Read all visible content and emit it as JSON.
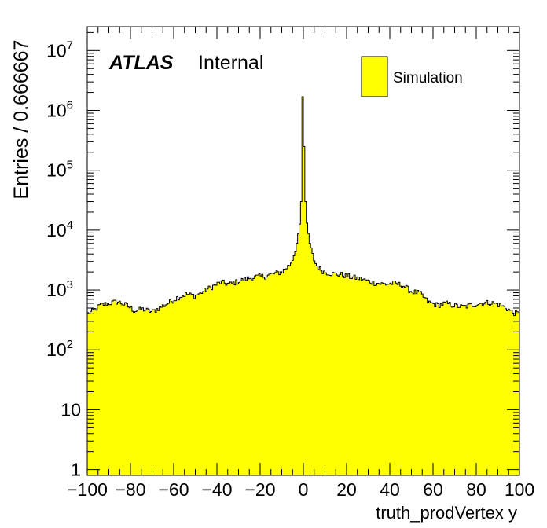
{
  "chart_data": {
    "type": "bar",
    "histtype": "step-filled",
    "xlabel": "truth_prodVertex y",
    "ylabel": "Entries / 0.666667",
    "xlim": [
      -100,
      100
    ],
    "ylim": [
      0.8,
      25000000
    ],
    "yscale": "log",
    "grid": false,
    "bin_width": 0.666667,
    "fill_color": "#ffff00",
    "line_color": "#000000",
    "legend": {
      "position": "top-right",
      "entries": [
        {
          "label": "Simulation",
          "color": "#ffff00"
        }
      ]
    },
    "annotation": {
      "bold": "ATLAS",
      "normal": "Internal"
    },
    "x_ticks": [
      {
        "value": -100,
        "label": "−100"
      },
      {
        "value": -80,
        "label": "−80"
      },
      {
        "value": -60,
        "label": "−60"
      },
      {
        "value": -40,
        "label": "−40"
      },
      {
        "value": -20,
        "label": "−20"
      },
      {
        "value": 0,
        "label": "0"
      },
      {
        "value": 20,
        "label": "20"
      },
      {
        "value": 40,
        "label": "40"
      },
      {
        "value": 60,
        "label": "60"
      },
      {
        "value": 80,
        "label": "80"
      },
      {
        "value": 100,
        "label": "100"
      }
    ],
    "y_ticks": [
      {
        "value": 1,
        "base": "1",
        "exp": ""
      },
      {
        "value": 10,
        "base": "10",
        "exp": ""
      },
      {
        "value": 100,
        "base": "10",
        "exp": "2"
      },
      {
        "value": 1000,
        "base": "10",
        "exp": "3"
      },
      {
        "value": 10000,
        "base": "10",
        "exp": "4"
      },
      {
        "value": 100000,
        "base": "10",
        "exp": "5"
      },
      {
        "value": 1000000,
        "base": "10",
        "exp": "6"
      },
      {
        "value": 10000000,
        "base": "10",
        "exp": "7"
      }
    ],
    "envelope": [
      [
        -100,
        400
      ],
      [
        -97,
        450
      ],
      [
        -94,
        560
      ],
      [
        -90,
        600
      ],
      [
        -86,
        640
      ],
      [
        -82,
        560
      ],
      [
        -78,
        450
      ],
      [
        -74,
        480
      ],
      [
        -70,
        430
      ],
      [
        -66,
        520
      ],
      [
        -62,
        620
      ],
      [
        -58,
        760
      ],
      [
        -54,
        850
      ],
      [
        -50,
        800
      ],
      [
        -46,
        960
      ],
      [
        -42,
        1150
      ],
      [
        -38,
        1350
      ],
      [
        -34,
        1250
      ],
      [
        -30,
        1400
      ],
      [
        -26,
        1550
      ],
      [
        -22,
        1650
      ],
      [
        -18,
        1700
      ],
      [
        -14,
        1850
      ],
      [
        -10,
        2000
      ],
      [
        -8,
        2300
      ],
      [
        -6,
        2700
      ],
      [
        -5,
        3300
      ],
      [
        -4,
        4200
      ],
      [
        -3,
        6000
      ],
      [
        -2,
        9000
      ],
      [
        -1.5,
        15000
      ],
      [
        -1,
        30000
      ],
      [
        -0.667,
        110000
      ],
      [
        -0.333,
        1700000
      ],
      [
        0,
        1700000
      ],
      [
        0.333,
        250000
      ],
      [
        0.667,
        80000
      ],
      [
        1,
        30000
      ],
      [
        1.5,
        15000
      ],
      [
        2,
        10000
      ],
      [
        3,
        6000
      ],
      [
        4,
        4200
      ],
      [
        5,
        3200
      ],
      [
        6,
        2600
      ],
      [
        8,
        2200
      ],
      [
        10,
        2000
      ],
      [
        14,
        1850
      ],
      [
        18,
        1800
      ],
      [
        22,
        1650
      ],
      [
        26,
        1550
      ],
      [
        30,
        1400
      ],
      [
        34,
        1300
      ],
      [
        38,
        1250
      ],
      [
        42,
        1300
      ],
      [
        46,
        1200
      ],
      [
        50,
        950
      ],
      [
        54,
        880
      ],
      [
        58,
        620
      ],
      [
        62,
        560
      ],
      [
        66,
        600
      ],
      [
        70,
        550
      ],
      [
        74,
        520
      ],
      [
        78,
        560
      ],
      [
        82,
        600
      ],
      [
        86,
        620
      ],
      [
        90,
        580
      ],
      [
        94,
        500
      ],
      [
        97,
        420
      ],
      [
        100,
        400
      ]
    ]
  }
}
